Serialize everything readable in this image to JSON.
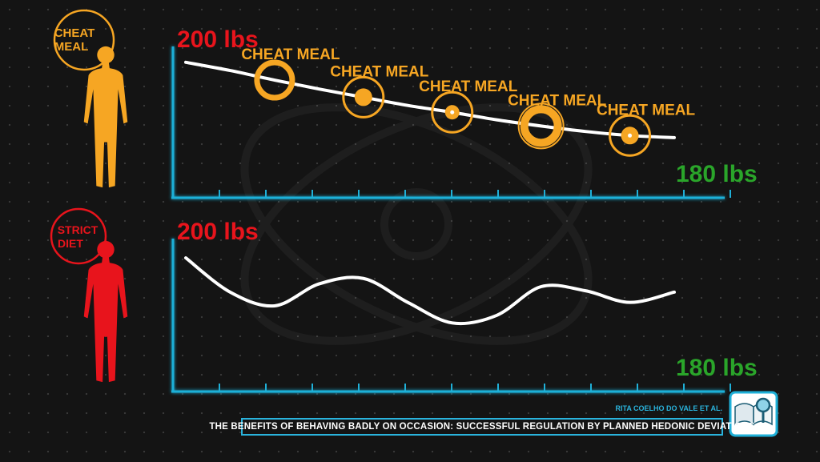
{
  "figure_labels": {
    "top_person_label": [
      "CHEAT",
      "MEAL"
    ],
    "bottom_person_label": [
      "STRICT",
      "DIET"
    ]
  },
  "colors": {
    "cheat": "#f6a623",
    "strict": "#e8141c",
    "start_weight": "#e8141c",
    "end_weight": "#2aa52a",
    "axis": "#1fb0d8",
    "line": "#ffffff"
  },
  "credit": "RITA COELHO DO VALE ET AL.",
  "caption": "THE BENEFITS OF BEHAVING BADLY ON OCCASION: SUCCESSFUL REGULATION BY PLANNED HEDONIC DEVIATIONS",
  "icons": [
    "book-magnifier-icon",
    "person-silhouette-icon"
  ],
  "chart_data": [
    {
      "type": "line",
      "series": [
        {
          "x": [
            0,
            1,
            2,
            3,
            4,
            5,
            6,
            7,
            8,
            9,
            10,
            11
          ],
          "values": [
            198.5,
            197.3,
            195.9,
            194.6,
            193.4,
            192.2,
            191.2,
            190.1,
            189.2,
            188.4,
            187.8,
            187.5
          ]
        }
      ],
      "ylim": [
        180,
        200
      ],
      "start_label": "200 lbs",
      "end_label": "180 lbs",
      "annotations": [
        {
          "label": "CHEAT MEAL",
          "x": 2.0,
          "y": 195.9
        },
        {
          "label": "CHEAT MEAL",
          "x": 4.0,
          "y": 193.4
        },
        {
          "label": "CHEAT MEAL",
          "x": 6.0,
          "y": 191.2
        },
        {
          "label": "CHEAT MEAL",
          "x": 8.0,
          "y": 189.2
        },
        {
          "label": "CHEAT MEAL",
          "x": 10.0,
          "y": 187.8
        }
      ]
    },
    {
      "type": "line",
      "series": [
        {
          "x": [
            0,
            1,
            2,
            3,
            4,
            5,
            6,
            7,
            8,
            9,
            10,
            11
          ],
          "values": [
            198.0,
            193.0,
            191.0,
            194.2,
            195.0,
            191.5,
            188.5,
            189.6,
            193.8,
            193.2,
            191.5,
            193.0
          ]
        }
      ],
      "ylim": [
        180,
        200
      ],
      "start_label": "200 lbs",
      "end_label": "180 lbs"
    }
  ]
}
